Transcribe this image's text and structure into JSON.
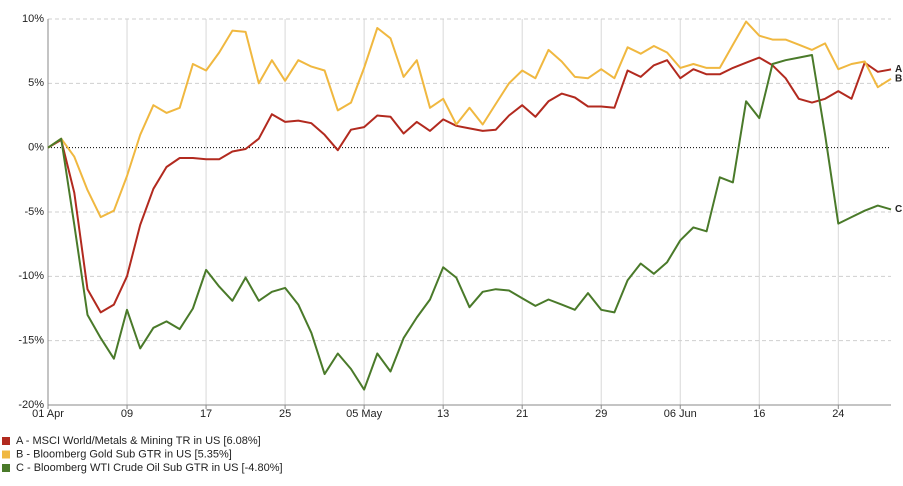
{
  "chart_data": {
    "type": "line",
    "categories": [
      "01 Apr",
      null,
      null,
      null,
      null,
      null,
      "09",
      null,
      null,
      null,
      null,
      null,
      "17",
      null,
      null,
      null,
      null,
      null,
      "25",
      null,
      null,
      null,
      null,
      null,
      "05 May",
      null,
      null,
      null,
      null,
      null,
      "13",
      null,
      null,
      null,
      null,
      null,
      "21",
      null,
      null,
      null,
      null,
      null,
      "29",
      null,
      null,
      null,
      null,
      null,
      "06 Jun",
      null,
      null,
      null,
      null,
      null,
      "16",
      null,
      null,
      null,
      null,
      null,
      "24",
      null,
      null,
      null,
      null
    ],
    "series": [
      {
        "name": "A - MSCI World/Metals & Mining TR in US [6.08%]",
        "tag": "A",
        "color": "#b22a1f",
        "values": [
          0,
          0.6,
          -3.5,
          -11,
          -12.8,
          -12.2,
          -10,
          -6,
          -3.2,
          -1.5,
          -0.8,
          -0.8,
          -0.9,
          -0.9,
          -0.3,
          -0.1,
          0.7,
          2.6,
          2.0,
          2.1,
          1.9,
          1.0,
          -0.2,
          1.4,
          1.6,
          2.5,
          2.4,
          1.1,
          2.0,
          1.3,
          2.2,
          1.7,
          1.5,
          1.3,
          1.4,
          2.5,
          3.3,
          2.4,
          3.6,
          4.2,
          3.9,
          3.2,
          3.2,
          3.1,
          6.0,
          5.5,
          6.4,
          6.8,
          5.4,
          6.1,
          5.7,
          5.7,
          6.2,
          6.6,
          7.0,
          6.4,
          5.4,
          3.8,
          3.5,
          3.8,
          4.4,
          3.8,
          6.6,
          5.9,
          6.08
        ]
      },
      {
        "name": "B - Bloomberg Gold Sub GTR in US [5.35%]",
        "tag": "B",
        "color": "#f0b840",
        "values": [
          0,
          0.7,
          -0.7,
          -3.3,
          -5.4,
          -4.9,
          -2.2,
          1.0,
          3.3,
          2.7,
          3.1,
          6.5,
          6.0,
          7.4,
          9.1,
          9.0,
          5.0,
          6.8,
          5.2,
          6.8,
          6.3,
          6.0,
          2.9,
          3.5,
          6.2,
          9.3,
          8.5,
          5.5,
          6.8,
          3.1,
          3.8,
          1.8,
          3.1,
          1.8,
          3.4,
          5.0,
          6.0,
          5.4,
          7.6,
          6.7,
          5.5,
          5.4,
          6.1,
          5.4,
          7.8,
          7.3,
          7.9,
          7.4,
          6.2,
          6.5,
          6.2,
          6.2,
          8.0,
          9.8,
          8.7,
          8.4,
          8.4,
          8.0,
          7.6,
          8.1,
          6.1,
          6.5,
          6.7,
          4.7,
          5.35
        ]
      },
      {
        "name": "C - Bloomberg WTI Crude Oil Sub GTR in US [-4.80%]",
        "tag": "C",
        "color": "#4a7a2a",
        "values": [
          0,
          0.7,
          -6,
          -13,
          -14.8,
          -16.4,
          -12.6,
          -15.6,
          -14,
          -13.5,
          -14.1,
          -12.5,
          -9.5,
          -10.8,
          -11.9,
          -10.1,
          -11.9,
          -11.2,
          -10.9,
          -12.2,
          -14.4,
          -17.6,
          -16,
          -17.2,
          -18.8,
          -16,
          -17.4,
          -14.8,
          -13.2,
          -11.8,
          -9.3,
          -10.1,
          -12.4,
          -11.2,
          -11,
          -11.1,
          -11.7,
          -12.3,
          -11.8,
          -12.2,
          -12.6,
          -11.3,
          -12.6,
          -12.8,
          -10.3,
          -9,
          -9.8,
          -8.9,
          -7.2,
          -6.2,
          -6.5,
          -2.3,
          -2.7,
          3.6,
          2.3,
          6.5,
          6.8,
          7.0,
          7.2,
          1,
          -5.9,
          -5.4,
          -4.9,
          -4.5,
          -4.8
        ]
      }
    ],
    "ylim": [
      -20,
      10
    ],
    "yticks": [
      {
        "value": -20,
        "label": "-20%"
      },
      {
        "value": -15,
        "label": "-15%"
      },
      {
        "value": -10,
        "label": "-10%"
      },
      {
        "value": -5,
        "label": "-5%"
      },
      {
        "value": 0,
        "label": "0%"
      },
      {
        "value": 5,
        "label": "5%"
      },
      {
        "value": 10,
        "label": "10%"
      }
    ],
    "grid": true,
    "legend": "bottom-left"
  }
}
